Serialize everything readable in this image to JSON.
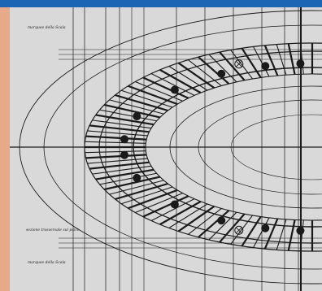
{
  "frame": {
    "border_color": "#e6a98a",
    "top_bar_color": "#1c64b4",
    "paper_color": "#d9d9d9"
  },
  "drawing": {
    "annotations": [
      {
        "id": "note-top",
        "text": "marquee della Scala"
      },
      {
        "id": "note-mid",
        "text": "sezione trasversale sul palco"
      },
      {
        "id": "note-bottom",
        "text": "marquee della Scala"
      }
    ],
    "symbols": [
      {
        "kind": "filled-dot"
      },
      {
        "kind": "filled-dot"
      },
      {
        "kind": "filled-dot"
      },
      {
        "kind": "filled-dot"
      },
      {
        "kind": "filled-dot"
      },
      {
        "kind": "filled-dot"
      },
      {
        "kind": "filled-dot"
      },
      {
        "kind": "filled-dot"
      },
      {
        "kind": "filled-dot"
      },
      {
        "kind": "filled-dot"
      },
      {
        "kind": "filled-dot"
      },
      {
        "kind": "filled-dot"
      },
      {
        "kind": "crossed-circle"
      },
      {
        "kind": "crossed-circle"
      }
    ]
  }
}
